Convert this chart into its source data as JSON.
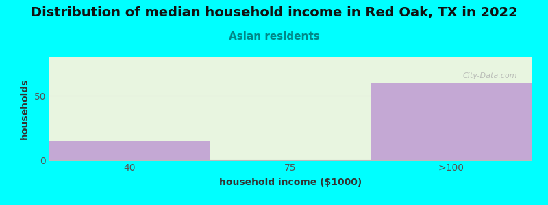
{
  "title": "Distribution of median household income in Red Oak, TX in 2022",
  "subtitle": "Asian residents",
  "xlabel": "household income ($1000)",
  "ylabel": "households",
  "background_color": "#00FFFF",
  "bar_color": "#C4A8D4",
  "bar_bg_color": "#E8F5E0",
  "categories": [
    "40",
    "75",
    ">100"
  ],
  "values": [
    15,
    0,
    60
  ],
  "ylim": [
    0,
    80
  ],
  "yticks": [
    0,
    50
  ],
  "title_fontsize": 14,
  "subtitle_fontsize": 11,
  "subtitle_color": "#008888",
  "axis_label_fontsize": 10,
  "tick_fontsize": 10,
  "watermark": "City-Data.com",
  "grid_color": "#DDDDDD",
  "title_color": "#111111",
  "tick_color": "#555555",
  "label_color": "#333333"
}
